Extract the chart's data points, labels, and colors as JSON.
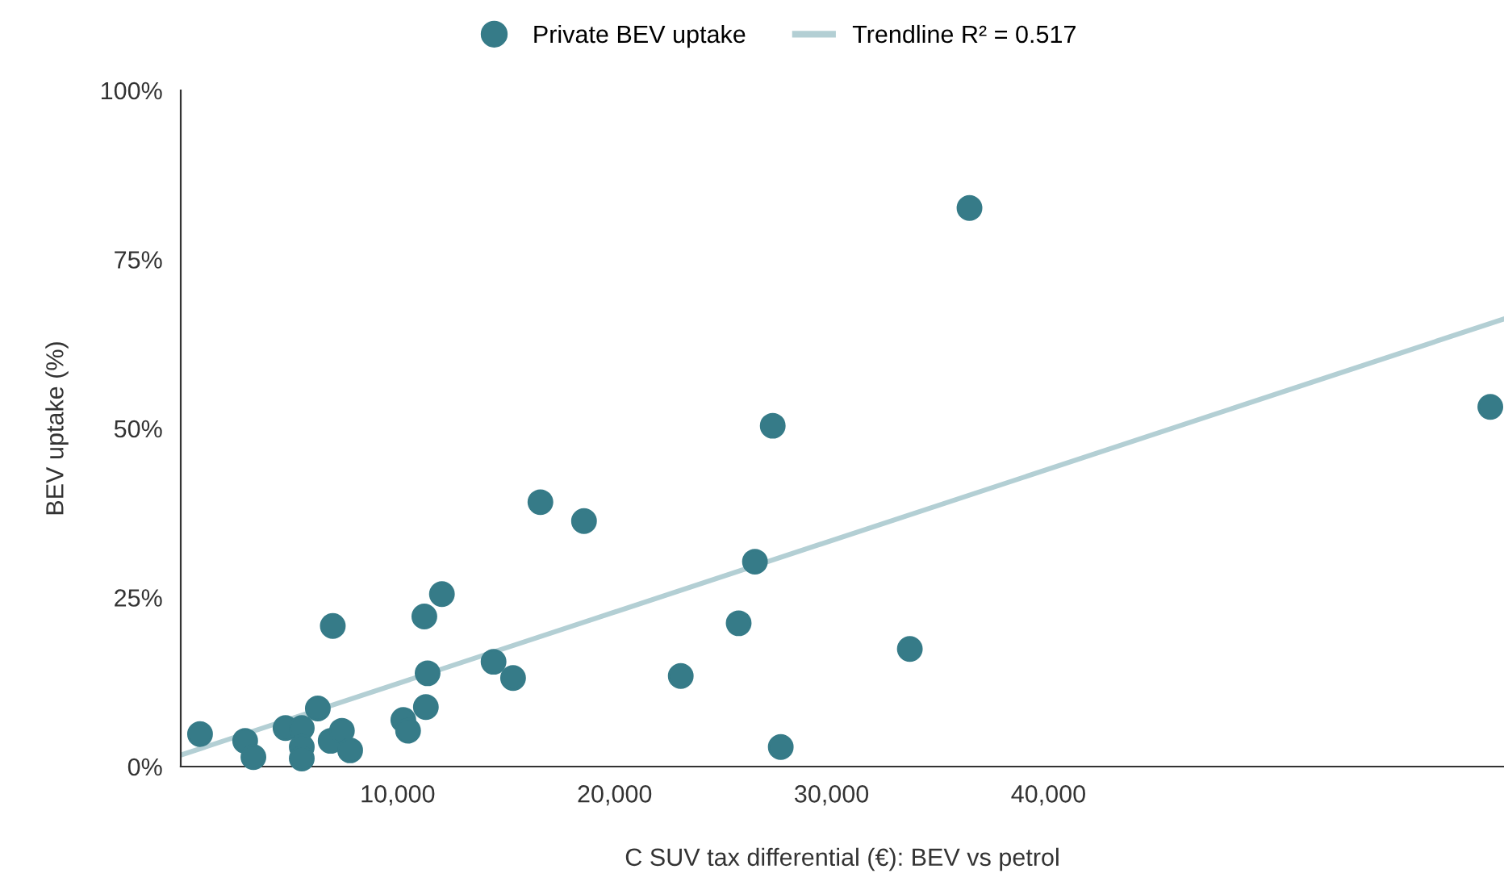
{
  "chart_data": {
    "type": "scatter",
    "xlabel": "C SUV tax differential (€): BEV vs petrol",
    "ylabel": "BEV uptake (%)",
    "xlim": [
      0,
      61000
    ],
    "xticks": [
      {
        "value": 10000,
        "label": "10,000"
      },
      {
        "value": 20000,
        "label": "20,000"
      },
      {
        "value": 30000,
        "label": "30,000"
      },
      {
        "value": 40000,
        "label": "40,000"
      }
    ],
    "ylim": [
      0,
      100
    ],
    "yticks": [
      {
        "value": 0,
        "label": "0%"
      },
      {
        "value": 25,
        "label": "25%"
      },
      {
        "value": 50,
        "label": "50%"
      },
      {
        "value": 75,
        "label": "75%"
      },
      {
        "value": 100,
        "label": "100%"
      }
    ],
    "grid": false,
    "legend": "top",
    "series": [
      {
        "name": "Private BEV uptake",
        "marker": "circle",
        "color": "#367b88",
        "x": [
          890,
          2970,
          3350,
          4830,
          5580,
          5580,
          5580,
          6320,
          7010,
          6910,
          7430,
          7810,
          10260,
          10480,
          11230,
          11300,
          11380,
          12040,
          14420,
          15320,
          16580,
          18590,
          23050,
          25720,
          26470,
          27290,
          27660,
          33610,
          36360,
          60370
        ],
        "values": [
          4.8,
          3.8,
          1.4,
          5.7,
          5.7,
          2.9,
          1.2,
          8.6,
          20.8,
          3.8,
          5.3,
          2.4,
          6.9,
          5.3,
          22.2,
          8.8,
          13.8,
          25.5,
          15.5,
          13.1,
          39.1,
          36.3,
          13.4,
          21.2,
          30.3,
          50.4,
          2.9,
          17.4,
          82.6,
          53.2
        ]
      },
      {
        "name": "Trendline R² = 0.517",
        "type": "line",
        "marker": "none",
        "color": "#b3cfd4",
        "x": [
          0,
          61000
        ],
        "values": [
          1.7,
          66.2
        ]
      }
    ]
  }
}
